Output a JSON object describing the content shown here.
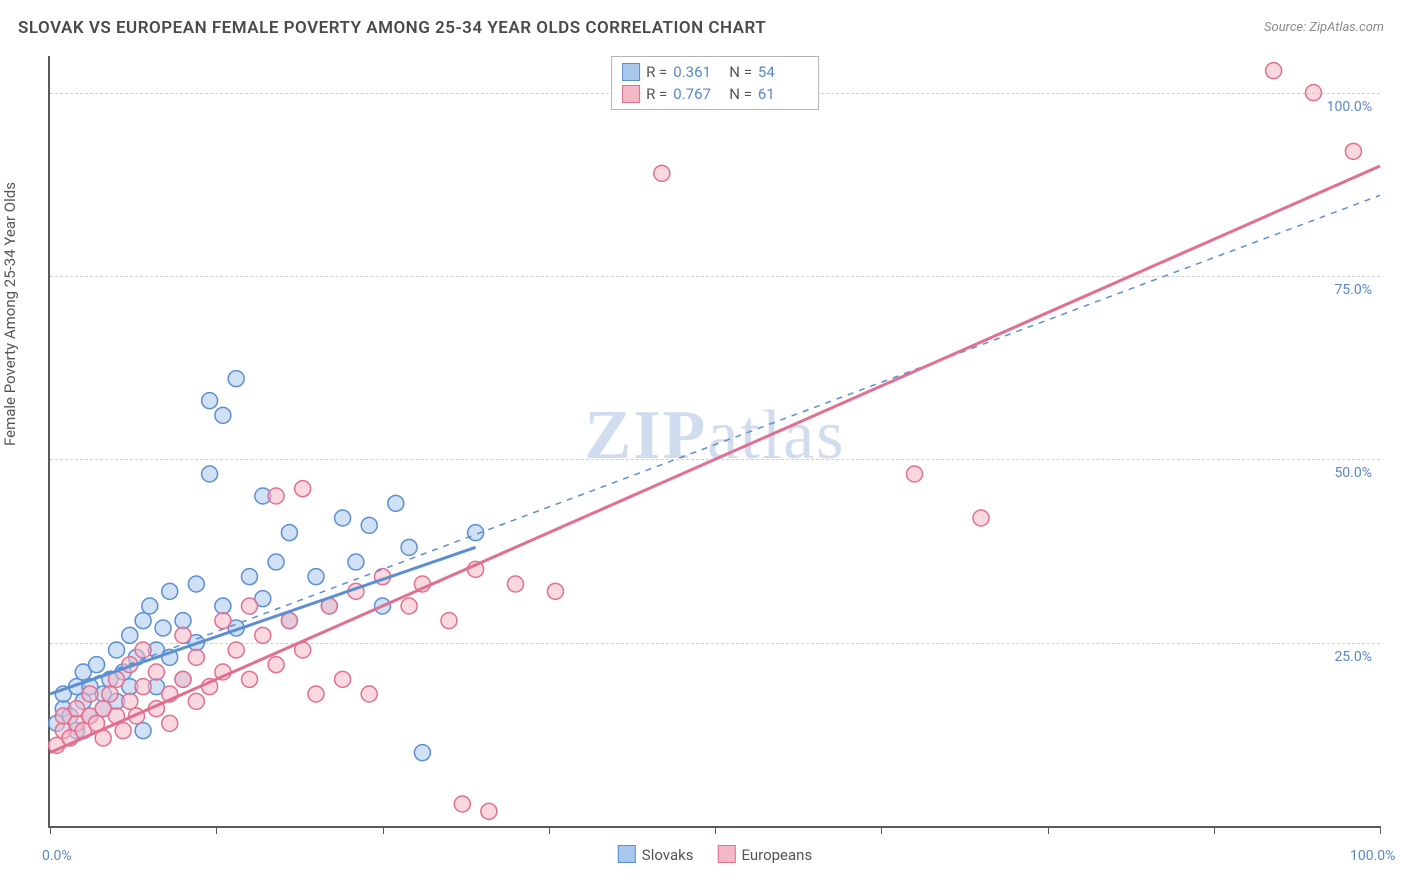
{
  "title": "SLOVAK VS EUROPEAN FEMALE POVERTY AMONG 25-34 YEAR OLDS CORRELATION CHART",
  "source": "Source: ZipAtlas.com",
  "watermark": {
    "bold": "ZIP",
    "light": "atlas"
  },
  "chart": {
    "type": "scatter",
    "background_color": "#ffffff",
    "grid_color": "#d0d0d0",
    "axis_color": "#595959",
    "label_color": "#5a87c7",
    "title_color": "#4a4a4a",
    "title_fontsize": 17,
    "label_fontsize": 14,
    "ylabel": "Female Poverty Among 25-34 Year Olds",
    "xlim": [
      0,
      100
    ],
    "ylim": [
      0,
      105
    ],
    "xticks": [
      0,
      12.5,
      25,
      37.5,
      50,
      62.5,
      75,
      87.5,
      100
    ],
    "xtick_labels": {
      "0": "0.0%",
      "100": "100.0%"
    },
    "yticks": [
      25,
      50,
      75,
      100
    ],
    "ytick_labels": {
      "25": "25.0%",
      "50": "50.0%",
      "75": "75.0%",
      "100": "100.0%"
    },
    "marker_radius": 8,
    "marker_opacity": 0.55,
    "line_width_primary": 3,
    "line_width_dashed": 1.5,
    "series": [
      {
        "name": "Slovaks",
        "color_fill": "#a9c7ec",
        "color_stroke": "#5b8fd1",
        "R": "0.361",
        "N": "54",
        "trend_solid": {
          "x1": 0,
          "y1": 18,
          "x2": 32,
          "y2": 38
        },
        "trend_dashed": {
          "x1": 0,
          "y1": 18,
          "x2": 100,
          "y2": 86
        },
        "points": [
          [
            0.5,
            14
          ],
          [
            1,
            16
          ],
          [
            1,
            18
          ],
          [
            1.5,
            15
          ],
          [
            2,
            19
          ],
          [
            2,
            13
          ],
          [
            2.5,
            17
          ],
          [
            2.5,
            21
          ],
          [
            3,
            15
          ],
          [
            3,
            19
          ],
          [
            3.5,
            22
          ],
          [
            4,
            18
          ],
          [
            4,
            16
          ],
          [
            4.5,
            20
          ],
          [
            5,
            24
          ],
          [
            5,
            17
          ],
          [
            5.5,
            21
          ],
          [
            6,
            26
          ],
          [
            6,
            19
          ],
          [
            6.5,
            23
          ],
          [
            7,
            28
          ],
          [
            7,
            13
          ],
          [
            7.5,
            30
          ],
          [
            8,
            24
          ],
          [
            8,
            19
          ],
          [
            8.5,
            27
          ],
          [
            9,
            32
          ],
          [
            9,
            23
          ],
          [
            10,
            28
          ],
          [
            10,
            20
          ],
          [
            11,
            33
          ],
          [
            11,
            25
          ],
          [
            12,
            58
          ],
          [
            12,
            48
          ],
          [
            13,
            56
          ],
          [
            13,
            30
          ],
          [
            14,
            61
          ],
          [
            14,
            27
          ],
          [
            15,
            34
          ],
          [
            16,
            31
          ],
          [
            16,
            45
          ],
          [
            17,
            36
          ],
          [
            18,
            28
          ],
          [
            18,
            40
          ],
          [
            20,
            34
          ],
          [
            21,
            30
          ],
          [
            22,
            42
          ],
          [
            23,
            36
          ],
          [
            24,
            41
          ],
          [
            25,
            30
          ],
          [
            26,
            44
          ],
          [
            27,
            38
          ],
          [
            28,
            10
          ],
          [
            32,
            40
          ]
        ]
      },
      {
        "name": "Europeans",
        "color_fill": "#f5b8c7",
        "color_stroke": "#e26f8f",
        "R": "0.767",
        "N": "61",
        "trend_solid": {
          "x1": 0,
          "y1": 10,
          "x2": 100,
          "y2": 90
        },
        "trend_dashed": null,
        "points": [
          [
            0.5,
            11
          ],
          [
            1,
            13
          ],
          [
            1,
            15
          ],
          [
            1.5,
            12
          ],
          [
            2,
            14
          ],
          [
            2,
            16
          ],
          [
            2.5,
            13
          ],
          [
            3,
            15
          ],
          [
            3,
            18
          ],
          [
            3.5,
            14
          ],
          [
            4,
            16
          ],
          [
            4,
            12
          ],
          [
            4.5,
            18
          ],
          [
            5,
            15
          ],
          [
            5,
            20
          ],
          [
            5.5,
            13
          ],
          [
            6,
            17
          ],
          [
            6,
            22
          ],
          [
            6.5,
            15
          ],
          [
            7,
            19
          ],
          [
            7,
            24
          ],
          [
            8,
            16
          ],
          [
            8,
            21
          ],
          [
            9,
            18
          ],
          [
            9,
            14
          ],
          [
            10,
            20
          ],
          [
            10,
            26
          ],
          [
            11,
            17
          ],
          [
            11,
            23
          ],
          [
            12,
            19
          ],
          [
            13,
            21
          ],
          [
            13,
            28
          ],
          [
            14,
            24
          ],
          [
            15,
            20
          ],
          [
            15,
            30
          ],
          [
            16,
            26
          ],
          [
            17,
            22
          ],
          [
            17,
            45
          ],
          [
            18,
            28
          ],
          [
            19,
            24
          ],
          [
            19,
            46
          ],
          [
            20,
            18
          ],
          [
            21,
            30
          ],
          [
            22,
            20
          ],
          [
            23,
            32
          ],
          [
            24,
            18
          ],
          [
            25,
            34
          ],
          [
            27,
            30
          ],
          [
            28,
            33
          ],
          [
            30,
            28
          ],
          [
            31,
            3
          ],
          [
            32,
            35
          ],
          [
            33,
            2
          ],
          [
            35,
            33
          ],
          [
            38,
            32
          ],
          [
            46,
            89
          ],
          [
            65,
            48
          ],
          [
            70,
            42
          ],
          [
            92,
            103
          ],
          [
            95,
            100
          ],
          [
            98,
            92
          ]
        ]
      }
    ],
    "legend_bottom": [
      {
        "label": "Slovaks",
        "fill": "#a9c7ec",
        "stroke": "#5b8fd1"
      },
      {
        "label": "Europeans",
        "fill": "#f5b8c7",
        "stroke": "#e26f8f"
      }
    ]
  }
}
